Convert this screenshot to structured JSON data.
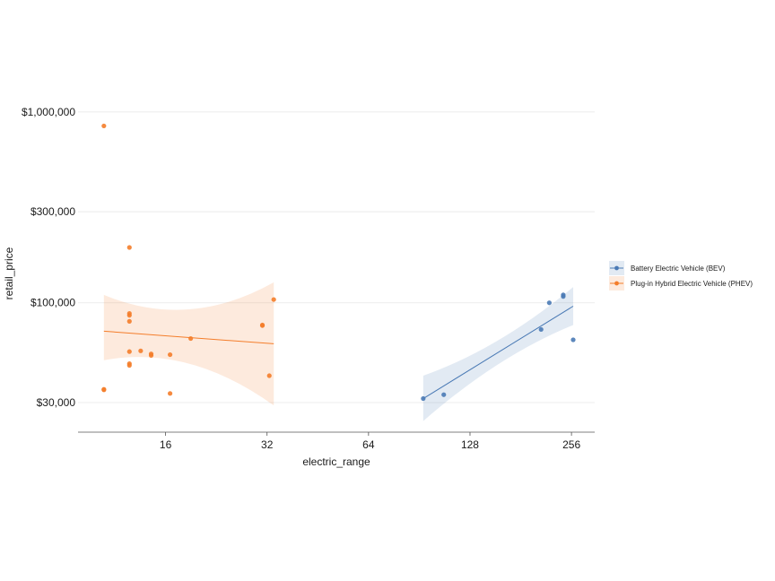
{
  "chart_data": {
    "type": "scatter",
    "xlabel": "electric_range",
    "ylabel": "retail_price",
    "x_scale": "log2",
    "y_scale": "log10",
    "xlim": [
      8.8,
      300
    ],
    "ylim": [
      21000,
      1200000
    ],
    "x_ticks": [
      16,
      32,
      64,
      128,
      256
    ],
    "x_tick_labels": [
      "16",
      "32",
      "64",
      "128",
      "256"
    ],
    "y_ticks": [
      30000,
      100000,
      300000,
      1000000
    ],
    "y_tick_labels": [
      "$30,000",
      "$100,000",
      "$300,000",
      "$1,000,000"
    ],
    "grid": "horizontal",
    "legend_position": "right",
    "series": [
      {
        "name": "Battery Electric Vehicle (BEV)",
        "color": "#4a7ab5",
        "points": [
          {
            "x": 93,
            "y": 31500
          },
          {
            "x": 107,
            "y": 33000
          },
          {
            "x": 208,
            "y": 72500
          },
          {
            "x": 220,
            "y": 100000
          },
          {
            "x": 242,
            "y": 108000
          },
          {
            "x": 242,
            "y": 110000
          },
          {
            "x": 259,
            "y": 64000
          }
        ],
        "fit": {
          "x": [
            93,
            259
          ],
          "y": [
            31500,
            96000
          ],
          "ci_upper": [
            41500,
            121000
          ],
          "ci_lower": [
            24000,
            76500
          ]
        }
      },
      {
        "name": "Plug-in Hybrid Electric Vehicle (PHEV)",
        "color": "#f47d2a",
        "points": [
          {
            "x": 10.5,
            "y": 845000
          },
          {
            "x": 10.5,
            "y": 35000
          },
          {
            "x": 10.5,
            "y": 35200
          },
          {
            "x": 12.5,
            "y": 195000
          },
          {
            "x": 12.5,
            "y": 88000
          },
          {
            "x": 12.5,
            "y": 86000
          },
          {
            "x": 12.5,
            "y": 80000
          },
          {
            "x": 12.5,
            "y": 55500
          },
          {
            "x": 12.5,
            "y": 48000
          },
          {
            "x": 12.5,
            "y": 47000
          },
          {
            "x": 13.5,
            "y": 56000
          },
          {
            "x": 14.5,
            "y": 54000
          },
          {
            "x": 14.5,
            "y": 53000
          },
          {
            "x": 16.5,
            "y": 53500
          },
          {
            "x": 16.5,
            "y": 33500
          },
          {
            "x": 19,
            "y": 65000
          },
          {
            "x": 31,
            "y": 76000
          },
          {
            "x": 31,
            "y": 76500
          },
          {
            "x": 33.5,
            "y": 104000
          },
          {
            "x": 32.5,
            "y": 41500
          }
        ],
        "fit": {
          "x": [
            10.5,
            33.5
          ],
          "y": [
            71000,
            61000
          ],
          "ci_upper": [
            110000,
            128000
          ],
          "ci_lower": [
            50000,
            29000
          ]
        }
      }
    ]
  }
}
